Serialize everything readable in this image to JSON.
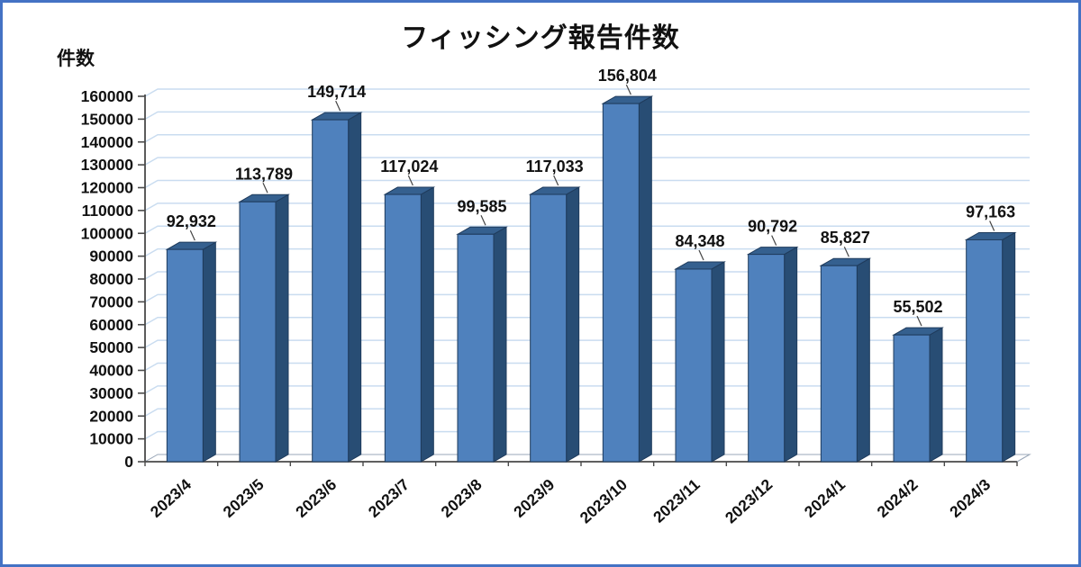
{
  "frame": {
    "border_color": "#4472c4",
    "background": "#ffffff"
  },
  "chart_data": {
    "type": "bar",
    "style": "3d-column",
    "title": "フィッシング報告件数",
    "ylabel": "件数",
    "xlabel": "",
    "categories": [
      "2023/4",
      "2023/5",
      "2023/6",
      "2023/7",
      "2023/8",
      "2023/9",
      "2023/10",
      "2023/11",
      "2023/12",
      "2024/1",
      "2024/2",
      "2024/3"
    ],
    "values": [
      92932,
      113789,
      149714,
      117024,
      99585,
      117033,
      156804,
      84348,
      90792,
      85827,
      55502,
      97163
    ],
    "data_labels": [
      "92,932",
      "113,789",
      "149,714",
      "117,024",
      "99,585",
      "117,033",
      "156,804",
      "84,348",
      "90,792",
      "85,827",
      "55,502",
      "97,163"
    ],
    "ylim": [
      0,
      160000
    ],
    "y_tick_step": 10000,
    "y_tick_labels": [
      "0",
      "10000",
      "20000",
      "30000",
      "40000",
      "50000",
      "60000",
      "70000",
      "80000",
      "90000",
      "100000",
      "110000",
      "120000",
      "130000",
      "140000",
      "150000",
      "160000"
    ],
    "grid": true,
    "legend": "none",
    "colors": {
      "bar_front": "#4f81bd",
      "bar_top": "#35608f",
      "bar_side": "#284d74",
      "bar_stroke": "#1f3b5c",
      "gridline": "#c9dcf0",
      "axis": "#4a4a4a",
      "floor_edge": "#9aa7b8",
      "text": "#111111"
    }
  }
}
